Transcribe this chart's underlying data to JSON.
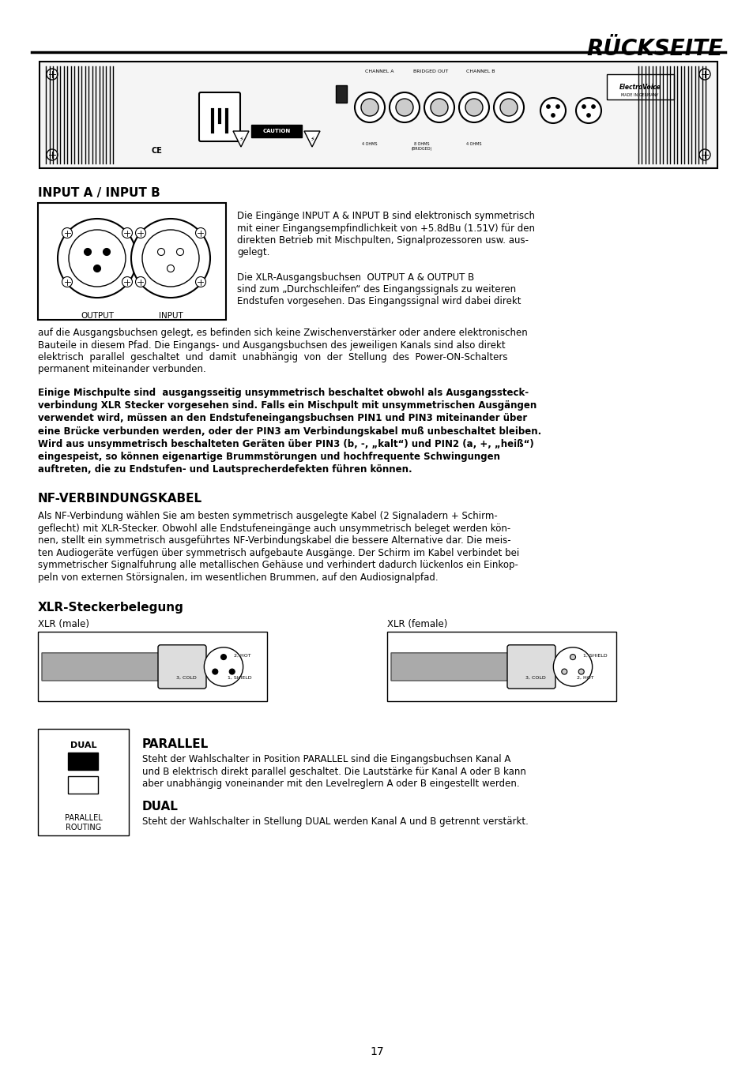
{
  "title": "RÜCKSEITE",
  "page_number": "17",
  "background_color": "#ffffff",
  "text_color": "#000000",
  "sections": [
    {
      "heading": "INPUT A / INPUT B",
      "heading_bold": true,
      "heading_size": 11
    },
    {
      "heading": "NF-VERBINDUNGSKABEL",
      "heading_bold": true,
      "heading_size": 11
    },
    {
      "heading": "XLR-Steckerbelegung",
      "heading_bold": true,
      "heading_size": 11
    },
    {
      "heading": "PARALLEL",
      "heading_bold": true,
      "heading_size": 11
    },
    {
      "heading": "DUAL",
      "heading_bold": true,
      "heading_size": 11
    }
  ],
  "input_text_lines": [
    "Die Eingänge INPUT A & INPUT B sind elektronisch symmetrisch",
    "mit einer Eingangsempfindlichkeit von +5.8dBu (1.51V) für den",
    "direkten Betrieb mit Mischpulten, Signalprozessoren usw. aus-",
    "gelegt.",
    "",
    "Die XLR-Ausgangsbuchsen  OUTPUT A & OUTPUT B",
    "sind zum „Durchschleifen“ des Eingangssignals zu weiteren",
    "Endstufen vorgesehen. Das Eingangssignal wird dabei direkt"
  ],
  "input_text_body": [
    "auf die Ausgangsbuchsen gelegt, es befinden sich keine Zwischenverstärker oder andere elektronischen",
    "Bauteile in diesem Pfad. Die Eingangs- und Ausgangsbuchsen des jeweiligen Kanals sind also direkt",
    "elektrisch  parallel  geschaltet  und  damit  unabhängig  von  der  Stellung  des  Power-ON-Schalters",
    "permanent miteinander verbunden."
  ],
  "bold_warning": [
    "Einige Mischpulte sind  ausgangsseitig unsymmetrisch beschaltet obwohl als Ausgangssteck-",
    "verbindung XLR Stecker vorgesehen sind. Falls ein Mischpult mit unsymmetrischen Ausgängen",
    "verwendet wird, müssen an den Endstufeneingangsbuchsen PIN1 und PIN3 miteinander über",
    "eine Brücke verbunden werden, oder der PIN3 am Verbindungskabel muß unbeschaltet bleiben.",
    "Wird aus unsymmetrisch beschalteten Geräten über PIN3 (b, -, „kalt“) und PIN2 (a, +, „heiß“)",
    "eingespeist, so können eigenartige Brummstörungen und hochfrequente Schwingungen",
    "auftreten, die zu Endstufen- und Lautsprecherdefekten führen können."
  ],
  "nf_text": [
    "Als NF-Verbindung wählen Sie am besten symmetrisch ausgelegte Kabel (2 Signaladern + Schirm-",
    "geflecht) mit XLR-Stecker. Obwohl alle Endstufeneingänge auch unsymmetrisch beleget werden kön-",
    "nen, stellt ein symmetrisch ausgeführtes NF-Verbindungskabel die bessere Alternative dar. Die meis-",
    "ten Audiogeräte verfügen über symmetrisch aufgebaute Ausgänge. Der Schirm im Kabel verbindet bei",
    "symmetrischer Signalfuhrung alle metallischen Gehäuse und verhindert dadurch lückenlos ein Einkop-",
    "peln von externen Störsignalen, im wesentlichen Brummen, auf den Audiosignalpfad."
  ],
  "xlr_male_label": "XLR (male)",
  "xlr_female_label": "XLR (female)",
  "parallel_text": [
    "Steht der Wahlschalter in Position PARALLEL sind die Eingangsbuchsen Kanal A",
    "und B elektrisch direkt parallel geschaltet. Die Lautstärke für Kanal A oder B kann",
    "aber unabhängig voneinander mit den Levelreglern A oder B eingestellt werden."
  ],
  "dual_text": "Steht der Wahlschalter in Stellung DUAL werden Kanal A und B getrennt verstärkt.",
  "parallel_routing_label": "PARALLEL\nROUTING",
  "dual_label": "DUAL"
}
